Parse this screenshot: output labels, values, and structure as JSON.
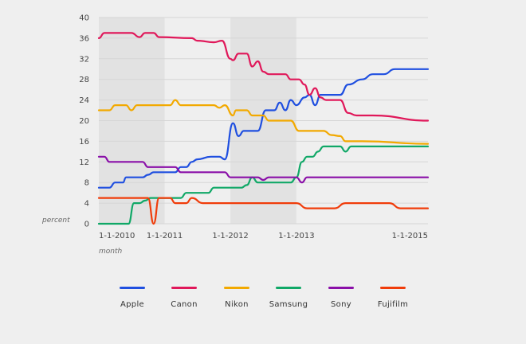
{
  "chart_data": {
    "type": "line",
    "xlabel": "month",
    "ylabel": "percent",
    "ylim": [
      0,
      40
    ],
    "yticks": [
      0,
      4,
      8,
      12,
      16,
      20,
      24,
      28,
      32,
      36,
      40
    ],
    "xlim": [
      "2010-01-01",
      "2015-01-01"
    ],
    "xticks": [
      "1-1-2010",
      "1-1-2011",
      "1-1-2012",
      "1-1-2013",
      "1-1-2015"
    ],
    "xtick_dates": [
      "2010-01-01",
      "2011-01-01",
      "2012-01-01",
      "2013-01-01",
      "2015-01-01"
    ],
    "grid": true,
    "legend_position": "bottom",
    "series": [
      {
        "name": "Apple",
        "color": "#1f4fe0",
        "points": [
          [
            "2010-01-01",
            7
          ],
          [
            "2010-03-01",
            7
          ],
          [
            "2010-04-01",
            8
          ],
          [
            "2010-05-15",
            8
          ],
          [
            "2010-06-01",
            9
          ],
          [
            "2010-09-01",
            9
          ],
          [
            "2010-10-01",
            9.5
          ],
          [
            "2010-11-01",
            10
          ],
          [
            "2011-03-01",
            10
          ],
          [
            "2011-04-01",
            11
          ],
          [
            "2011-05-01",
            11
          ],
          [
            "2011-06-01",
            12
          ],
          [
            "2011-07-01",
            12.5
          ],
          [
            "2011-09-15",
            13
          ],
          [
            "2011-11-01",
            13
          ],
          [
            "2011-12-01",
            12.5
          ],
          [
            "2012-01-15",
            19.5
          ],
          [
            "2012-02-15",
            17
          ],
          [
            "2012-03-15",
            18
          ],
          [
            "2012-06-01",
            18
          ],
          [
            "2012-07-15",
            22
          ],
          [
            "2012-09-01",
            22
          ],
          [
            "2012-10-01",
            23.5
          ],
          [
            "2012-11-01",
            22
          ],
          [
            "2012-12-01",
            24
          ],
          [
            "2013-01-01",
            23
          ],
          [
            "2013-02-15",
            24.5
          ],
          [
            "2013-03-15",
            25
          ],
          [
            "2013-04-15",
            23
          ],
          [
            "2013-05-15",
            25
          ],
          [
            "2013-09-01",
            25
          ],
          [
            "2013-10-15",
            27
          ],
          [
            "2014-01-01",
            28
          ],
          [
            "2014-03-01",
            29
          ],
          [
            "2014-05-01",
            29
          ],
          [
            "2014-07-01",
            30
          ],
          [
            "2015-01-01",
            30
          ]
        ]
      },
      {
        "name": "Canon",
        "color": "#e0185a",
        "points": [
          [
            "2010-01-01",
            36
          ],
          [
            "2010-02-01",
            37
          ],
          [
            "2010-07-01",
            37
          ],
          [
            "2010-08-15",
            36.2
          ],
          [
            "2010-09-15",
            37
          ],
          [
            "2010-11-01",
            37
          ],
          [
            "2010-12-01",
            36.2
          ],
          [
            "2011-06-01",
            36
          ],
          [
            "2011-07-01",
            35.5
          ],
          [
            "2011-10-01",
            35.2
          ],
          [
            "2011-11-15",
            35.5
          ],
          [
            "2012-01-01",
            32
          ],
          [
            "2012-01-15",
            31.7
          ],
          [
            "2012-02-15",
            33
          ],
          [
            "2012-04-01",
            33
          ],
          [
            "2012-05-01",
            30.5
          ],
          [
            "2012-06-01",
            31.5
          ],
          [
            "2012-07-01",
            29.5
          ],
          [
            "2012-08-01",
            29
          ],
          [
            "2012-11-01",
            29
          ],
          [
            "2012-12-01",
            28
          ],
          [
            "2013-01-15",
            28
          ],
          [
            "2013-02-15",
            27
          ],
          [
            "2013-03-15",
            25
          ],
          [
            "2013-04-15",
            26.3
          ],
          [
            "2013-05-15",
            24.5
          ],
          [
            "2013-06-15",
            24
          ],
          [
            "2013-09-01",
            24
          ],
          [
            "2013-10-15",
            21.5
          ],
          [
            "2013-12-01",
            21
          ],
          [
            "2014-02-01",
            21
          ],
          [
            "2014-03-01",
            21
          ],
          [
            "2015-01-01",
            20
          ]
        ]
      },
      {
        "name": "Nikon",
        "color": "#f2a900",
        "points": [
          [
            "2010-01-01",
            22
          ],
          [
            "2010-03-01",
            22
          ],
          [
            "2010-04-01",
            23
          ],
          [
            "2010-06-01",
            23
          ],
          [
            "2010-07-01",
            22
          ],
          [
            "2010-08-01",
            23
          ],
          [
            "2011-02-01",
            23
          ],
          [
            "2011-03-01",
            24
          ],
          [
            "2011-04-01",
            23
          ],
          [
            "2011-10-01",
            23
          ],
          [
            "2011-11-01",
            22.5
          ],
          [
            "2011-12-01",
            23
          ],
          [
            "2012-01-15",
            21
          ],
          [
            "2012-02-01",
            22
          ],
          [
            "2012-04-01",
            22
          ],
          [
            "2012-05-01",
            21
          ],
          [
            "2012-07-01",
            21
          ],
          [
            "2012-08-01",
            20
          ],
          [
            "2012-12-01",
            20
          ],
          [
            "2013-01-15",
            18
          ],
          [
            "2013-06-01",
            18
          ],
          [
            "2013-07-15",
            17.2
          ],
          [
            "2013-09-01",
            17
          ],
          [
            "2013-10-01",
            16
          ],
          [
            "2014-01-01",
            16
          ],
          [
            "2015-01-01",
            15.5
          ]
        ]
      },
      {
        "name": "Samsung",
        "color": "#10a867",
        "points": [
          [
            "2010-01-01",
            0
          ],
          [
            "2010-06-15",
            0
          ],
          [
            "2010-07-15",
            4
          ],
          [
            "2010-08-15",
            4
          ],
          [
            "2010-09-15",
            4.5
          ],
          [
            "2010-10-15",
            5
          ],
          [
            "2011-02-01",
            5
          ],
          [
            "2011-04-01",
            5
          ],
          [
            "2011-05-01",
            6
          ],
          [
            "2011-09-01",
            6
          ],
          [
            "2011-10-01",
            7
          ],
          [
            "2012-03-01",
            7
          ],
          [
            "2012-04-01",
            7.5
          ],
          [
            "2012-05-01",
            9
          ],
          [
            "2012-06-01",
            8
          ],
          [
            "2012-12-01",
            8
          ],
          [
            "2013-01-01",
            9
          ],
          [
            "2013-02-01",
            12
          ],
          [
            "2013-03-01",
            13
          ],
          [
            "2013-04-01",
            13
          ],
          [
            "2013-05-01",
            14
          ],
          [
            "2013-06-01",
            15
          ],
          [
            "2013-09-01",
            15
          ],
          [
            "2013-10-01",
            14
          ],
          [
            "2013-11-01",
            15
          ],
          [
            "2015-01-01",
            15
          ]
        ]
      },
      {
        "name": "Sony",
        "color": "#8a0fa8",
        "points": [
          [
            "2010-01-01",
            13
          ],
          [
            "2010-02-01",
            13
          ],
          [
            "2010-03-01",
            12
          ],
          [
            "2010-09-01",
            12
          ],
          [
            "2010-10-01",
            11
          ],
          [
            "2011-03-01",
            11
          ],
          [
            "2011-04-01",
            10
          ],
          [
            "2011-12-01",
            10
          ],
          [
            "2012-01-01",
            9
          ],
          [
            "2012-06-01",
            9
          ],
          [
            "2012-07-01",
            8.5
          ],
          [
            "2012-08-01",
            9
          ],
          [
            "2013-01-01",
            9
          ],
          [
            "2013-02-01",
            8
          ],
          [
            "2013-03-01",
            9
          ],
          [
            "2015-01-01",
            9
          ]
        ]
      },
      {
        "name": "Fujifilm",
        "color": "#f03c0a",
        "points": [
          [
            "2010-01-01",
            5
          ],
          [
            "2010-10-01",
            5
          ],
          [
            "2010-11-01",
            0
          ],
          [
            "2010-12-01",
            5
          ],
          [
            "2011-02-01",
            5
          ],
          [
            "2011-03-01",
            4
          ],
          [
            "2011-05-01",
            4
          ],
          [
            "2011-06-01",
            5
          ],
          [
            "2011-08-01",
            4
          ],
          [
            "2013-01-01",
            4
          ],
          [
            "2013-03-01",
            3
          ],
          [
            "2013-06-01",
            3
          ],
          [
            "2013-08-01",
            3
          ],
          [
            "2013-10-01",
            4
          ],
          [
            "2014-06-01",
            4
          ],
          [
            "2014-08-01",
            3
          ],
          [
            "2015-01-01",
            3
          ]
        ]
      }
    ]
  }
}
